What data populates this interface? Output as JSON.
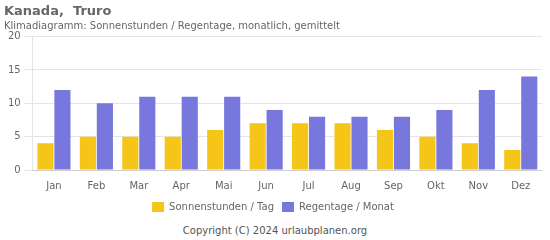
{
  "chart_data": {
    "type": "bar",
    "title": "Kanada,  Truro",
    "subtitle": "Klimadiagramm: Sonnenstunden / Regentage, monatlich, gemittelt",
    "footer": "Copyright (C) 2024 urlaubplanen.org",
    "categories": [
      "Jan",
      "Feb",
      "Mar",
      "Apr",
      "Mai",
      "Jun",
      "Jul",
      "Aug",
      "Sep",
      "Okt",
      "Nov",
      "Dez"
    ],
    "series": [
      {
        "name": "Sonnenstunden / Tag",
        "color": "#f5c518",
        "values": [
          4,
          5,
          5,
          5,
          6,
          7,
          7,
          7,
          6,
          5,
          4,
          3
        ]
      },
      {
        "name": "Regentage / Monat",
        "color": "#7777dd",
        "values": [
          12,
          10,
          11,
          11,
          11,
          9,
          8,
          8,
          8,
          9,
          12,
          14
        ]
      }
    ],
    "ylim": [
      0,
      20
    ],
    "yticks": [
      0,
      5,
      10,
      15,
      20
    ],
    "grid": true,
    "legend": "bottom"
  }
}
